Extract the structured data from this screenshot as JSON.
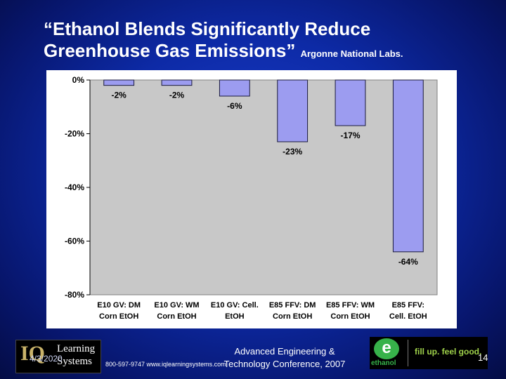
{
  "slide": {
    "title_line1": "“Ethanol Blends Significantly Reduce",
    "title_line2": "Greenhouse Gas Emissions”",
    "title_source": "Argonne National Labs.",
    "date": "4/3/2020",
    "phone_web": "800-597-9747 www.iqlearningsystems.com",
    "conference_line1": "Advanced Engineering &",
    "conference_line2": "Technology Conference, 2007",
    "page_number": "14",
    "logo_left_iq": "IQ",
    "logo_left_word1": "Learning",
    "logo_left_word2": "Systems",
    "logo_right_word": "ethanol",
    "logo_right_tagline": "fill up. feel good."
  },
  "chart_data": {
    "type": "bar",
    "title": "",
    "xlabel": "",
    "ylabel": "",
    "ylim": [
      -80,
      0
    ],
    "yticks": [
      0,
      -20,
      -40,
      -60,
      -80
    ],
    "ytick_labels": [
      "0%",
      "-20%",
      "-40%",
      "-60%",
      "-80%"
    ],
    "categories": [
      [
        "E10 GV: DM",
        "Corn EtOH"
      ],
      [
        "E10 GV: WM",
        "Corn EtOH"
      ],
      [
        "E10 GV: Cell.",
        "EtOH"
      ],
      [
        "E85 FFV: DM",
        "Corn EtOH"
      ],
      [
        "E85 FFV: WM",
        "Corn EtOH"
      ],
      [
        "E85 FFV:",
        "Cell. EtOH"
      ]
    ],
    "values": [
      -2,
      -2,
      -6,
      -23,
      -17,
      -64
    ],
    "value_labels": [
      "-2%",
      "-2%",
      "-6%",
      "-23%",
      "-17%",
      "-64%"
    ],
    "grid": false,
    "legend": "none",
    "colors": {
      "bar_fill": "#9c9cf0",
      "bar_edge": "#1a1a3a",
      "plot_bg": "#c8c8c8",
      "panel_bg": "#ffffff"
    }
  }
}
